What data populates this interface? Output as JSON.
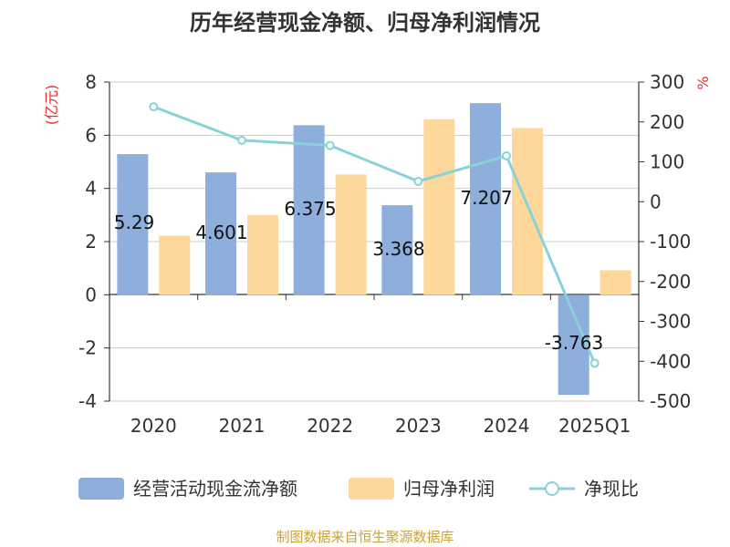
{
  "colors": {
    "bar_cash": "#8eaedb",
    "bar_profit": "#fed79b",
    "line": "#88d2d9",
    "axis": "#333333",
    "grid": "#cccccc",
    "unit": "#e62d2d",
    "source": "#c9a43a",
    "title": "#333333"
  },
  "chart_data": {
    "type": "bar",
    "title": "历年经营现金净额、归母净利润情况",
    "categories": [
      "2020",
      "2021",
      "2022",
      "2023",
      "2024",
      "2025Q1"
    ],
    "left_axis": {
      "unit": "(亿元)",
      "min": -4,
      "max": 8,
      "ticks": [
        8,
        6,
        4,
        2,
        0,
        -2,
        -4
      ]
    },
    "right_axis": {
      "unit": "%",
      "min": -500,
      "max": 300,
      "ticks": [
        300,
        200,
        100,
        0,
        -100,
        -200,
        -300,
        -400,
        -500
      ]
    },
    "grid": true,
    "legend_position": "bottom",
    "series": [
      {
        "name": "经营活动现金流净额",
        "type": "bar",
        "axis": "left",
        "values": [
          5.29,
          4.601,
          6.375,
          3.368,
          7.207,
          -3.763
        ],
        "labels": [
          "5.29",
          "4.601",
          "6.375",
          "3.368",
          "7.207",
          "-3.763"
        ]
      },
      {
        "name": "归母净利润",
        "type": "bar",
        "axis": "left",
        "values": [
          2.22,
          2.99,
          4.52,
          6.6,
          6.27,
          0.92
        ]
      },
      {
        "name": "净现比",
        "type": "line",
        "axis": "right",
        "values": [
          238,
          154,
          141,
          51,
          115,
          -405
        ]
      }
    ],
    "source": "制图数据来自恒生聚源数据库"
  }
}
